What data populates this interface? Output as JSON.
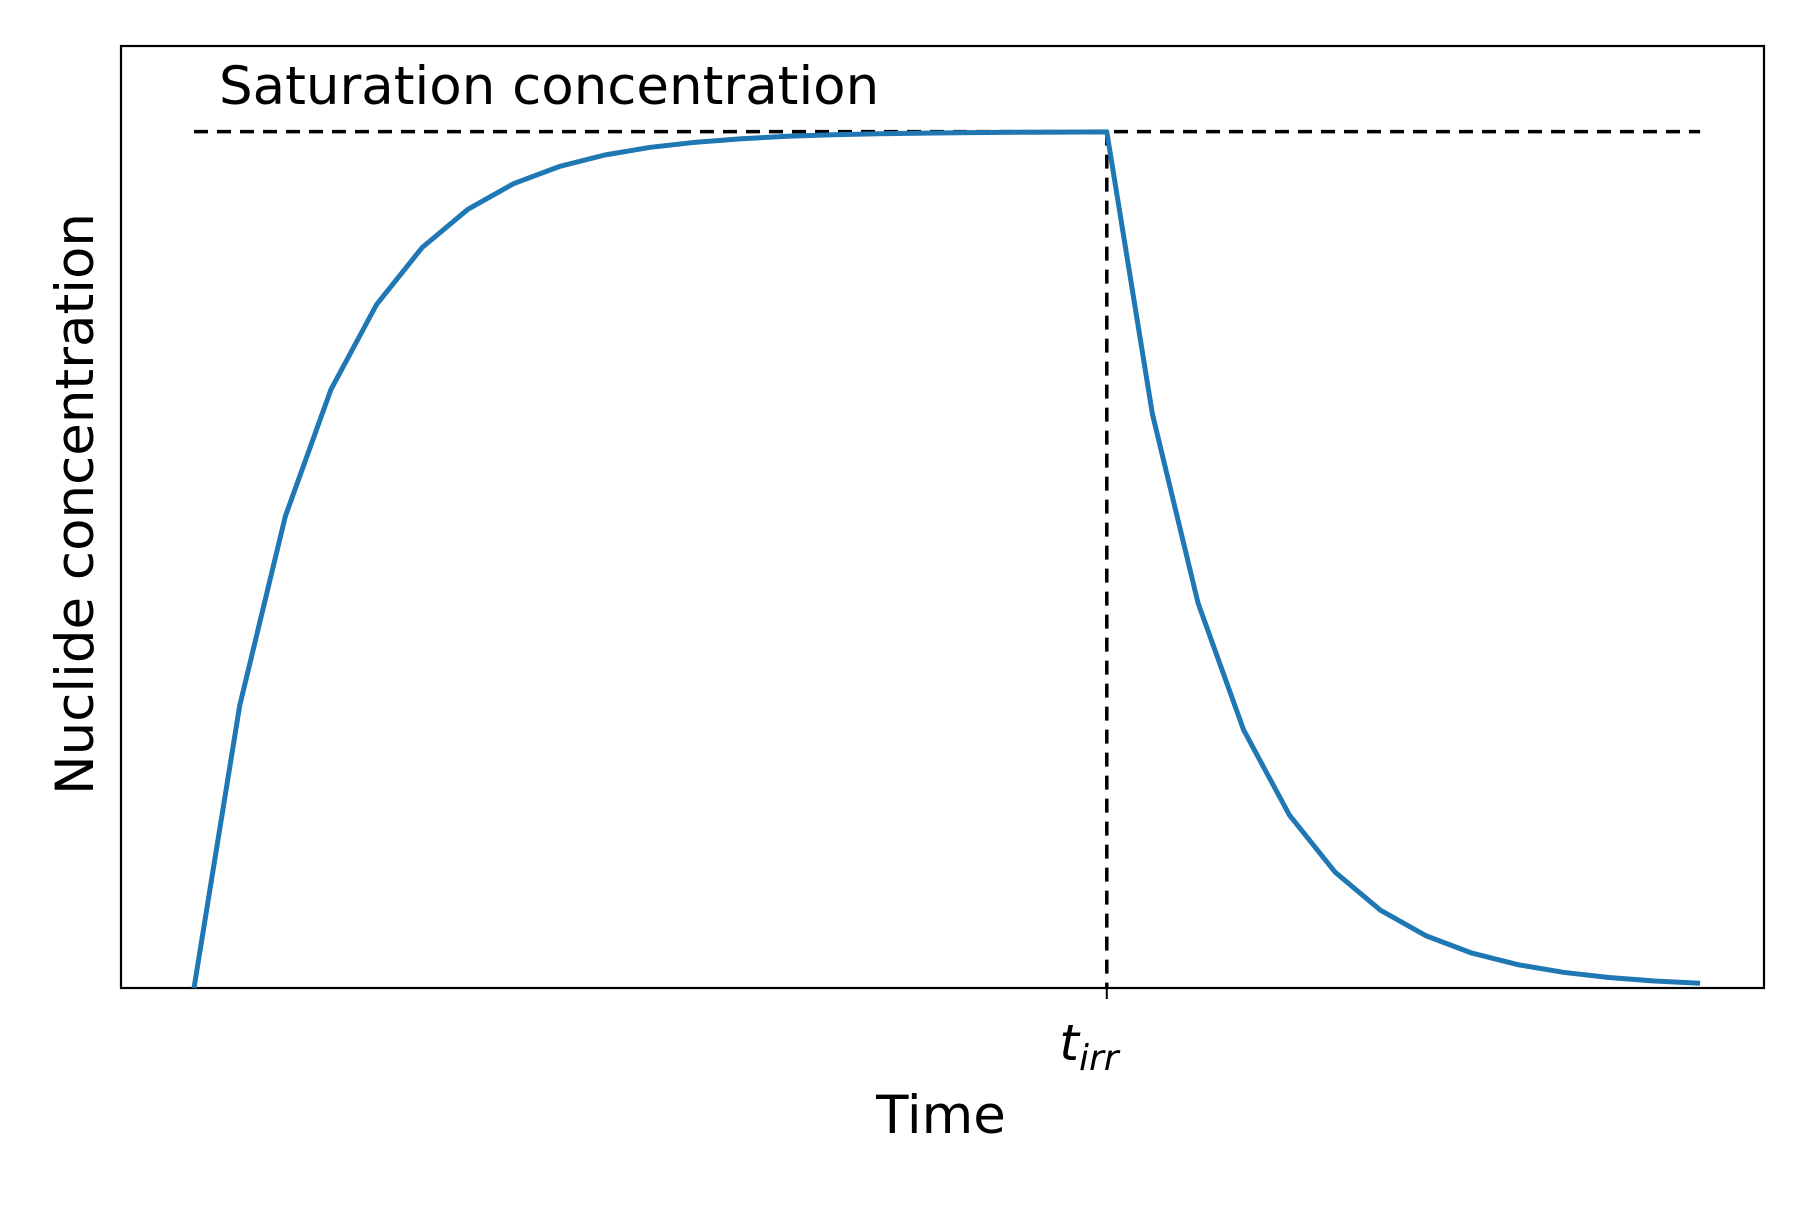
{
  "chart_data": {
    "type": "line",
    "xlabel": "Time",
    "ylabel": "Nuclide concentration",
    "annotation": "Saturation concentration",
    "xtick": {
      "t_main": "t",
      "t_sub": "irr"
    },
    "xlim": [
      -0.08,
      1.72
    ],
    "ylim": [
      0,
      1.1
    ],
    "t_irr": 1.0,
    "saturation_level": 1.0,
    "grid": false,
    "legend": "none",
    "series": [
      {
        "color": "#1f77b4",
        "x": [
          0,
          0.05,
          0.1,
          0.15,
          0.2,
          0.25,
          0.3,
          0.35,
          0.4,
          0.45,
          0.5,
          0.55,
          0.6,
          0.65,
          0.7,
          0.75,
          0.8,
          0.85,
          0.9,
          0.95,
          1.0,
          1.05,
          1.1,
          1.15,
          1.2,
          1.25,
          1.3,
          1.35,
          1.4,
          1.45,
          1.5,
          1.55,
          1.6,
          1.65
        ],
        "y": [
          0,
          0.3297,
          0.5507,
          0.6988,
          0.7981,
          0.8647,
          0.9093,
          0.9392,
          0.9592,
          0.9727,
          0.9817,
          0.9877,
          0.9918,
          0.9945,
          0.9963,
          0.9975,
          0.9983,
          0.9989,
          0.9993,
          0.9995,
          0.9997,
          0.6703,
          0.4493,
          0.3012,
          0.2019,
          0.1353,
          0.0907,
          0.0608,
          0.0408,
          0.0273,
          0.0183,
          0.0123,
          0.0082,
          0.0055
        ]
      }
    ],
    "saturation_line": {
      "color": "#000000",
      "x_range": [
        0,
        1.65
      ]
    },
    "irradiation_line": {
      "color": "#000000"
    }
  }
}
